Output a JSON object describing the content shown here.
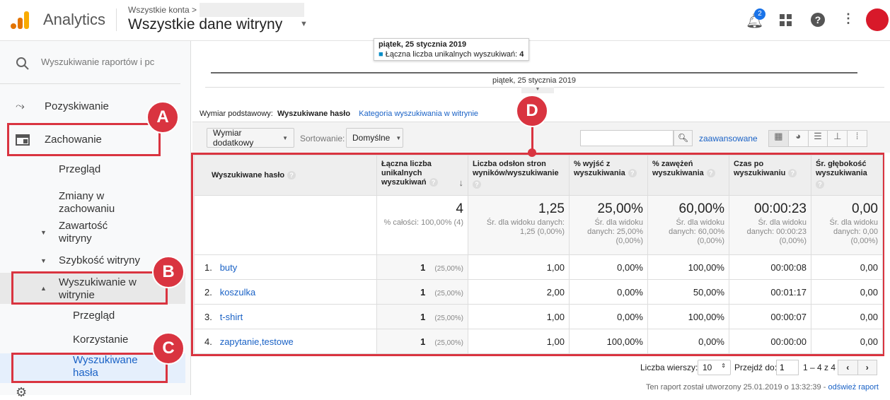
{
  "header": {
    "app": "Analytics",
    "breadcrumb": "Wszystkie konta >",
    "view": "Wszystkie dane witryny",
    "notifications": "2"
  },
  "sidebar": {
    "search_placeholder": "Wyszukiwanie raportów i pc",
    "items": [
      "Pozyskiwanie",
      "Zachowanie",
      "Przegląd",
      "Zmiany w zachowaniu",
      "Zawartość witryny",
      "Szybkość witryny",
      "Wyszukiwanie w witrynie",
      "Przegląd",
      "Korzystanie",
      "Wyszukiwane hasła"
    ]
  },
  "callouts": [
    "A",
    "B",
    "C",
    "D"
  ],
  "chart": {
    "tooltip_date": "piątek, 25 stycznia 2019",
    "tooltip_metric": "Łączna liczba unikalnych wyszukiwań:",
    "tooltip_value": "4",
    "axis_label": "piątek, 25 stycznia 2019"
  },
  "dimension": {
    "label": "Wymiar podstawowy:",
    "active": "Wyszukiwane hasło",
    "other": "Kategoria wyszukiwania w witrynie"
  },
  "toolbar": {
    "secondary": "Wymiar dodatkowy",
    "sort_label": "Sortowanie:",
    "sort_value": "Domyślne",
    "advanced": "zaawansowane"
  },
  "table": {
    "headers": [
      "Wyszukiwane hasło",
      "Łączna liczba unikalnych wyszukiwań",
      "Liczba odsłon stron wyników/wyszukiwanie",
      "% wyjść z wyszukiwania",
      "% zawężeń wyszukiwania",
      "Czas po wyszukiwaniu",
      "Śr. głębokość wyszukiwania"
    ],
    "summary": [
      {
        "v": "4",
        "s": "% całości: 100,00% (4)"
      },
      {
        "v": "1,25",
        "s": "Śr. dla widoku danych: 1,25 (0,00%)"
      },
      {
        "v": "25,00%",
        "s": "Śr. dla widoku danych: 25,00% (0,00%)"
      },
      {
        "v": "60,00%",
        "s": "Śr. dla widoku danych: 60,00% (0,00%)"
      },
      {
        "v": "00:00:23",
        "s": "Śr. dla widoku danych: 00:00:23 (0,00%)"
      },
      {
        "v": "0,00",
        "s": "Śr. dla widoku danych: 0,00 (0,00%)"
      }
    ],
    "rows": [
      {
        "n": "1.",
        "term": "buty",
        "u": "1",
        "pct": "(25,00%)",
        "c": [
          "1,00",
          "0,00%",
          "100,00%",
          "00:00:08",
          "0,00"
        ]
      },
      {
        "n": "2.",
        "term": "koszulka",
        "u": "1",
        "pct": "(25,00%)",
        "c": [
          "2,00",
          "0,00%",
          "50,00%",
          "00:01:17",
          "0,00"
        ]
      },
      {
        "n": "3.",
        "term": "t-shirt",
        "u": "1",
        "pct": "(25,00%)",
        "c": [
          "1,00",
          "0,00%",
          "100,00%",
          "00:00:07",
          "0,00"
        ]
      },
      {
        "n": "4.",
        "term": "zapytanie,testowe",
        "u": "1",
        "pct": "(25,00%)",
        "c": [
          "1,00",
          "100,00%",
          "0,00%",
          "00:00:00",
          "0,00"
        ]
      }
    ]
  },
  "pagination": {
    "rows_label": "Liczba wierszy:",
    "rows_value": "10",
    "goto_label": "Przejdź do:",
    "goto_value": "1",
    "range": "1 – 4 z 4"
  },
  "footer": {
    "text": "Ten raport został utworzony 25.01.2019 o 13:32:39 -",
    "refresh": "odśwież raport"
  }
}
